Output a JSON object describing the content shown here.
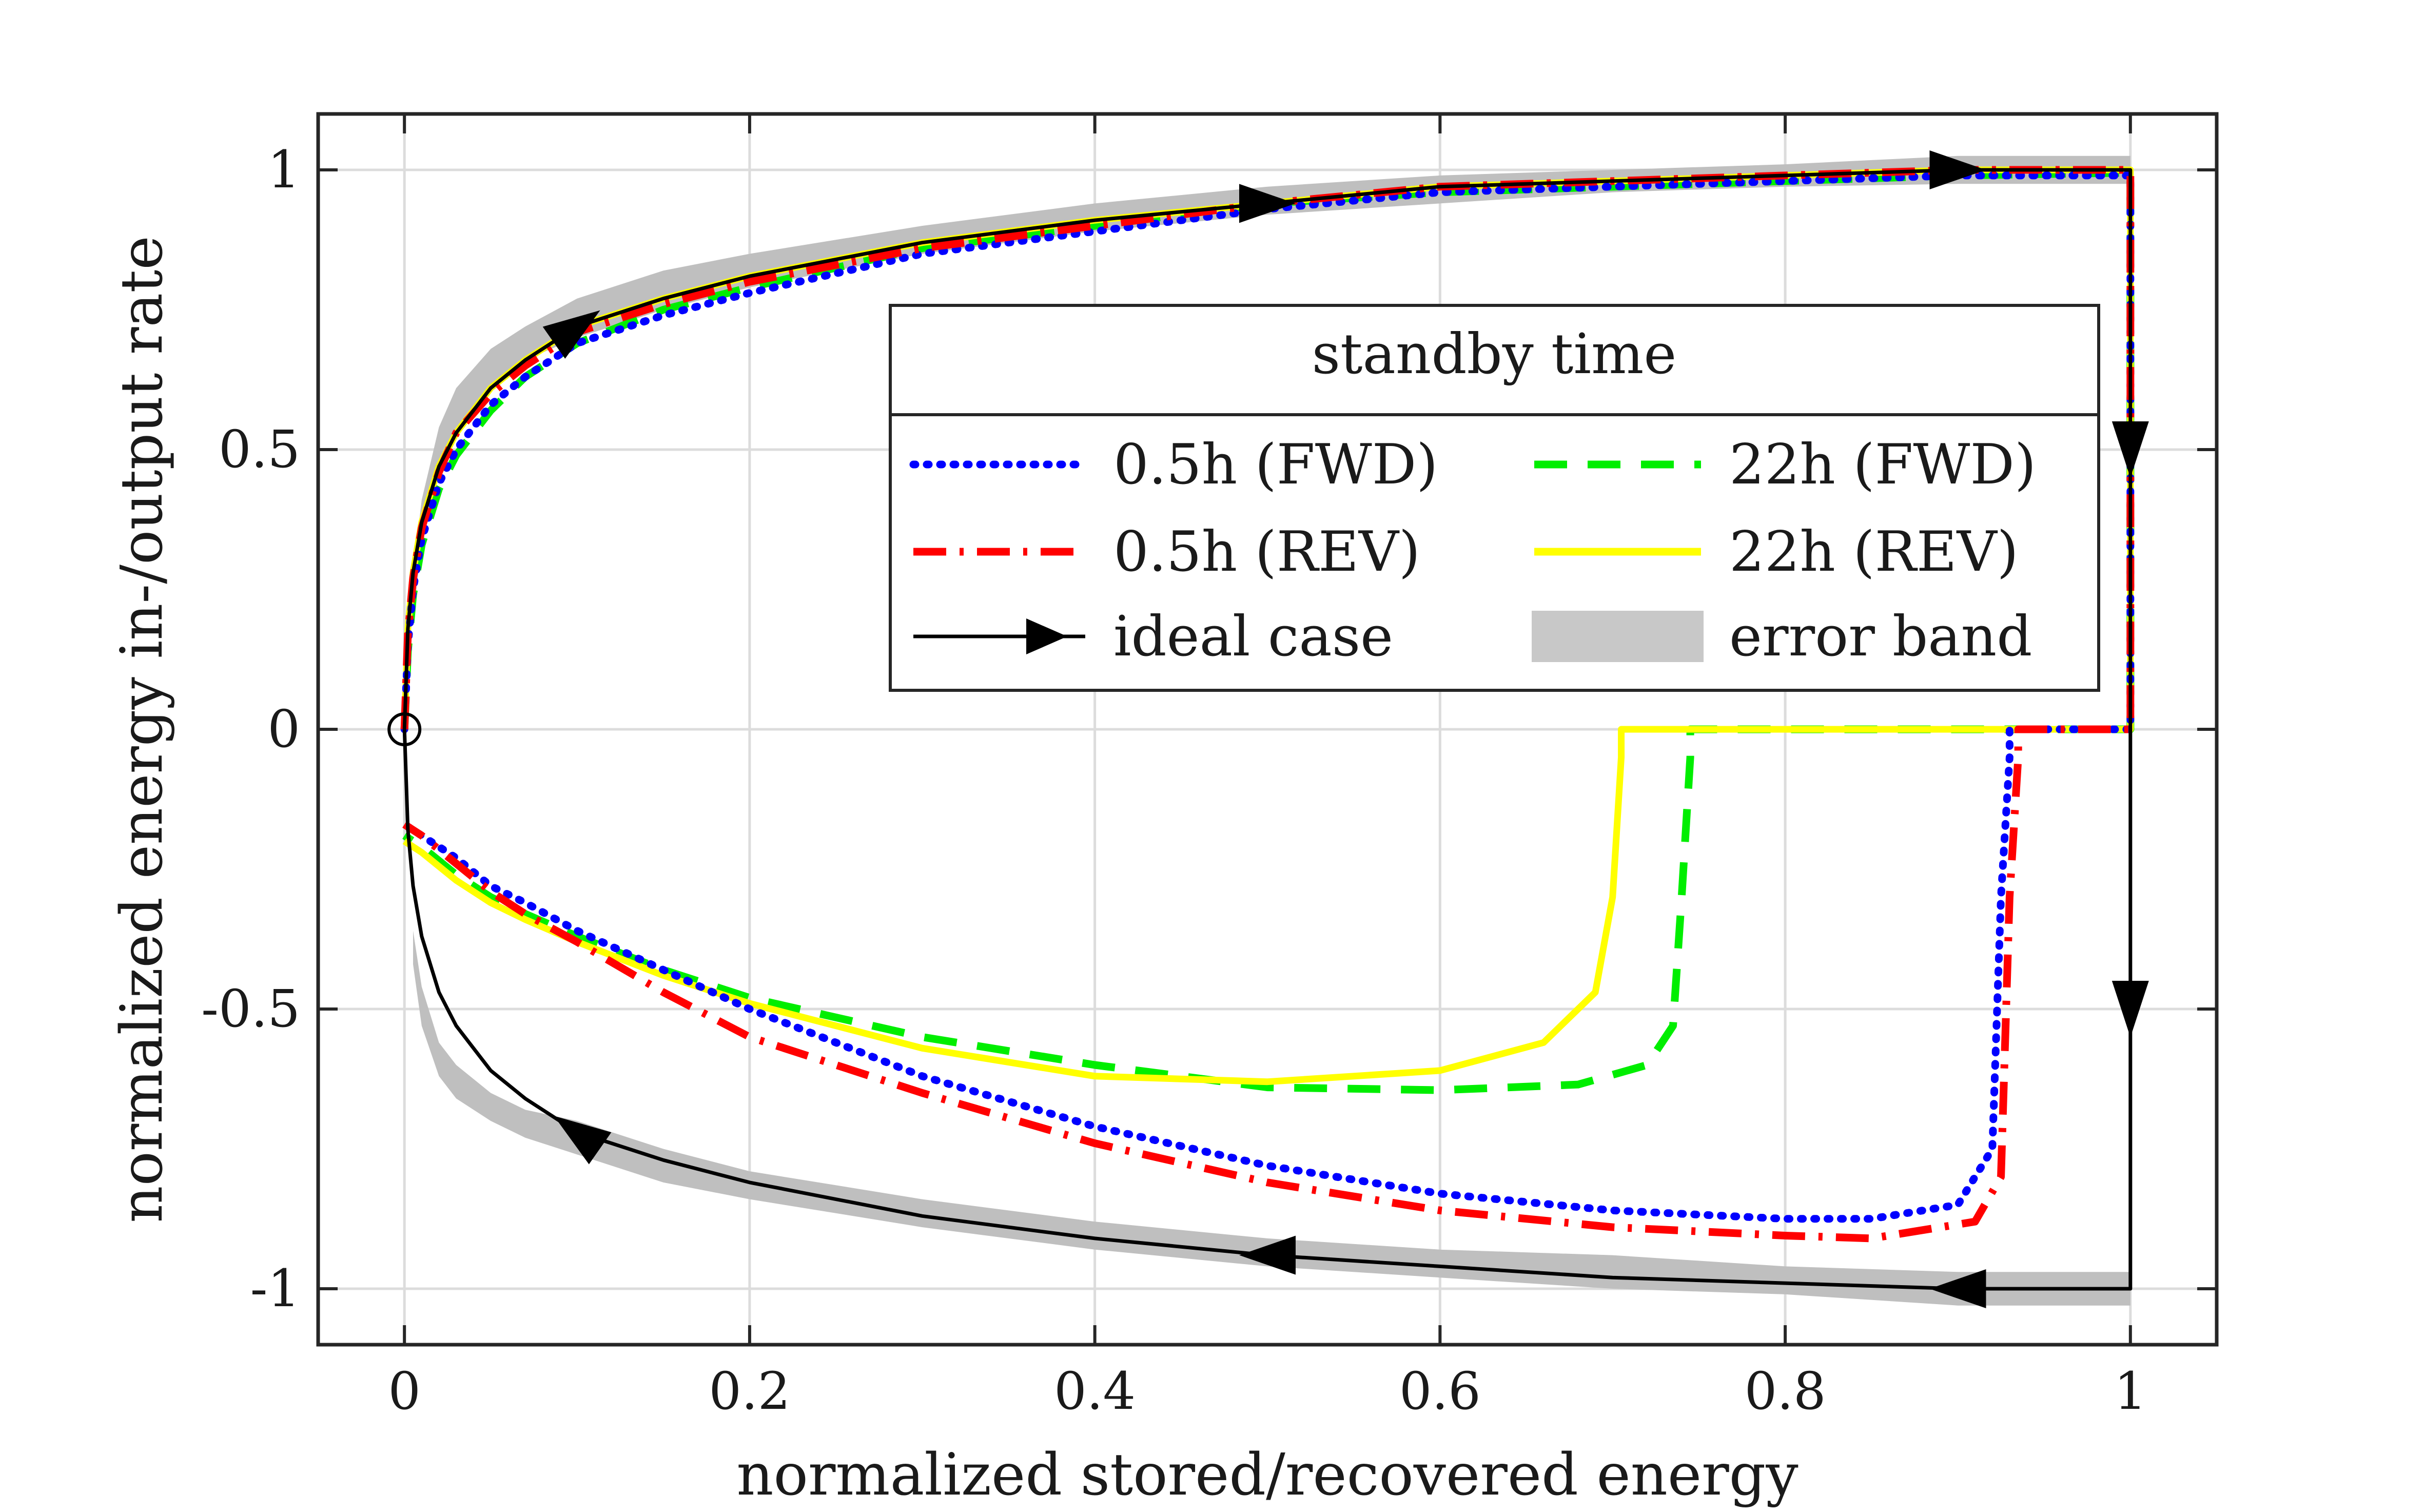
{
  "chart_data": {
    "type": "line",
    "title": "",
    "xlabel": "normalized stored/recovered energy",
    "ylabel": "normalized energy in-/output rate",
    "xlim": [
      -0.05,
      1.05
    ],
    "ylim": [
      -1.1,
      1.1
    ],
    "grid": true,
    "xticks": [
      0,
      0.2,
      0.4,
      0.6,
      0.8,
      1
    ],
    "xtick_labels": [
      "0",
      "0.2",
      "0.4",
      "0.6",
      "0.8",
      "1"
    ],
    "yticks": [
      1,
      0.5,
      0,
      -0.5,
      -1
    ],
    "ytick_labels": [
      "1",
      "0.5",
      "0",
      "-0.5",
      "-1"
    ],
    "legend": {
      "title": "standby time",
      "placement": "top-right inside",
      "entries": [
        {
          "key": "fwd05",
          "label": "0.5h (FWD)"
        },
        {
          "key": "fwd22",
          "label": "22h (FWD)"
        },
        {
          "key": "rev05",
          "label": "0.5h (REV)"
        },
        {
          "key": "rev22",
          "label": "22h (REV)"
        },
        {
          "key": "ideal",
          "label": "ideal case"
        },
        {
          "key": "band",
          "label": "error band"
        }
      ]
    },
    "series": [
      {
        "key": "band",
        "name": "error band",
        "color": "#bfbfbf",
        "style": "band",
        "upper": {
          "x": [
            0.005,
            0.01,
            0.02,
            0.03,
            0.05,
            0.07,
            0.1,
            0.15,
            0.2,
            0.3,
            0.4,
            0.5,
            0.6,
            0.7,
            0.8,
            0.9,
            1.0
          ],
          "lower": [
            0.2,
            0.33,
            0.47,
            0.54,
            0.61,
            0.66,
            0.7,
            0.75,
            0.79,
            0.85,
            0.89,
            0.92,
            0.94,
            0.96,
            0.97,
            0.975,
            0.975
          ],
          "upper": [
            0.28,
            0.41,
            0.54,
            0.61,
            0.68,
            0.72,
            0.77,
            0.82,
            0.85,
            0.9,
            0.94,
            0.97,
            0.99,
            1.0,
            1.01,
            1.025,
            1.025
          ]
        },
        "lower_branch": {
          "x": [
            0.005,
            0.01,
            0.02,
            0.03,
            0.05,
            0.07,
            0.1,
            0.15,
            0.2,
            0.3,
            0.4,
            0.5,
            0.6,
            0.7,
            0.8,
            0.9,
            1.0
          ],
          "lower": [
            -0.42,
            -0.53,
            -0.62,
            -0.66,
            -0.7,
            -0.73,
            -0.76,
            -0.81,
            -0.84,
            -0.89,
            -0.93,
            -0.96,
            -0.98,
            -1.0,
            -1.01,
            -1.03,
            -1.03
          ],
          "upper": [
            -0.36,
            -0.46,
            -0.56,
            -0.6,
            -0.65,
            -0.68,
            -0.7,
            -0.75,
            -0.79,
            -0.84,
            -0.88,
            -0.91,
            -0.93,
            -0.94,
            -0.96,
            -0.97,
            -0.97
          ]
        }
      },
      {
        "key": "fwd05",
        "name": "0.5h (FWD)",
        "color": "#0000ff",
        "style": "dotted",
        "x": [
          0,
          0.002,
          0.005,
          0.01,
          0.02,
          0.03,
          0.05,
          0.07,
          0.1,
          0.15,
          0.2,
          0.3,
          0.4,
          0.5,
          0.6,
          0.7,
          0.8,
          0.9,
          1.0,
          1.0,
          1.0,
          0.93,
          0.93,
          0.925,
          0.92,
          0.9,
          0.85,
          0.8,
          0.7,
          0.6,
          0.5,
          0.4,
          0.3,
          0.2,
          0.15,
          0.1,
          0.07,
          0.05,
          0.03,
          0.01,
          0.0
        ],
        "y": [
          0,
          0.15,
          0.25,
          0.34,
          0.44,
          0.5,
          0.58,
          0.63,
          0.69,
          0.74,
          0.78,
          0.85,
          0.89,
          0.93,
          0.96,
          0.97,
          0.98,
          0.99,
          0.99,
          0.5,
          0.0,
          0.0,
          -0.05,
          -0.3,
          -0.75,
          -0.85,
          -0.875,
          -0.875,
          -0.86,
          -0.83,
          -0.78,
          -0.71,
          -0.62,
          -0.5,
          -0.43,
          -0.36,
          -0.31,
          -0.28,
          -0.23,
          -0.19,
          -0.17
        ]
      },
      {
        "key": "rev05",
        "name": "0.5h (REV)",
        "color": "#ff0000",
        "style": "dashdot",
        "x": [
          0,
          0.002,
          0.005,
          0.01,
          0.02,
          0.03,
          0.05,
          0.07,
          0.1,
          0.15,
          0.2,
          0.3,
          0.4,
          0.5,
          0.6,
          0.7,
          0.8,
          0.9,
          1.0,
          1.0,
          1.0,
          0.935,
          0.935,
          0.93,
          0.925,
          0.91,
          0.85,
          0.8,
          0.7,
          0.6,
          0.5,
          0.4,
          0.3,
          0.2,
          0.15,
          0.1,
          0.07,
          0.05,
          0.03,
          0.01,
          0.0
        ],
        "y": [
          0,
          0.17,
          0.27,
          0.36,
          0.46,
          0.53,
          0.6,
          0.65,
          0.71,
          0.76,
          0.8,
          0.86,
          0.9,
          0.94,
          0.97,
          0.98,
          0.99,
          1.0,
          1.0,
          0.5,
          0.0,
          0.0,
          -0.05,
          -0.3,
          -0.8,
          -0.88,
          -0.91,
          -0.905,
          -0.89,
          -0.86,
          -0.81,
          -0.74,
          -0.65,
          -0.55,
          -0.47,
          -0.38,
          -0.33,
          -0.29,
          -0.24,
          -0.19,
          -0.17
        ]
      },
      {
        "key": "fwd22",
        "name": "22h (FWD)",
        "color": "#00ee00",
        "style": "dashed",
        "x": [
          0,
          0.002,
          0.005,
          0.01,
          0.02,
          0.03,
          0.05,
          0.07,
          0.1,
          0.15,
          0.2,
          0.3,
          0.4,
          0.5,
          0.6,
          0.7,
          0.8,
          0.9,
          1.0,
          1.0,
          1.0,
          0.745,
          0.745,
          0.74,
          0.735,
          0.72,
          0.68,
          0.6,
          0.5,
          0.4,
          0.3,
          0.2,
          0.15,
          0.1,
          0.07,
          0.05,
          0.03,
          0.01,
          0.0
        ],
        "y": [
          0,
          0.14,
          0.24,
          0.33,
          0.43,
          0.49,
          0.57,
          0.63,
          0.69,
          0.75,
          0.79,
          0.86,
          0.9,
          0.94,
          0.96,
          0.97,
          0.98,
          0.99,
          0.995,
          0.5,
          0.0,
          0.0,
          -0.05,
          -0.3,
          -0.53,
          -0.6,
          -0.635,
          -0.645,
          -0.64,
          -0.6,
          -0.55,
          -0.48,
          -0.43,
          -0.37,
          -0.33,
          -0.3,
          -0.26,
          -0.21,
          -0.19
        ]
      },
      {
        "key": "rev22",
        "name": "22h (REV)",
        "color": "#ffff00",
        "style": "solid",
        "x": [
          0,
          0.002,
          0.005,
          0.01,
          0.02,
          0.03,
          0.05,
          0.07,
          0.1,
          0.15,
          0.2,
          0.3,
          0.4,
          0.5,
          0.6,
          0.7,
          0.8,
          0.9,
          1.0,
          1.0,
          1.0,
          0.705,
          0.705,
          0.7,
          0.69,
          0.66,
          0.6,
          0.5,
          0.4,
          0.3,
          0.2,
          0.15,
          0.1,
          0.07,
          0.05,
          0.03,
          0.01,
          0.0
        ],
        "y": [
          0,
          0.18,
          0.28,
          0.37,
          0.47,
          0.53,
          0.61,
          0.66,
          0.72,
          0.77,
          0.81,
          0.87,
          0.91,
          0.94,
          0.97,
          0.98,
          0.99,
          1.0,
          1.0,
          0.5,
          0.0,
          0.0,
          -0.05,
          -0.3,
          -0.47,
          -0.56,
          -0.61,
          -0.63,
          -0.62,
          -0.57,
          -0.49,
          -0.44,
          -0.38,
          -0.34,
          -0.31,
          -0.27,
          -0.22,
          -0.2
        ]
      },
      {
        "key": "ideal",
        "name": "ideal case",
        "color": "#000000",
        "style": "solid-arrows",
        "x": [
          0,
          0.002,
          0.005,
          0.01,
          0.02,
          0.03,
          0.05,
          0.07,
          0.1,
          0.15,
          0.2,
          0.3,
          0.4,
          0.5,
          0.6,
          0.7,
          0.8,
          0.9,
          1.0,
          1.0,
          1.0,
          1.0,
          0.9,
          0.8,
          0.7,
          0.6,
          0.5,
          0.4,
          0.3,
          0.2,
          0.15,
          0.1,
          0.07,
          0.05,
          0.03,
          0.02,
          0.01,
          0.005,
          0.002,
          0
        ],
        "y": [
          0,
          0.18,
          0.28,
          0.37,
          0.47,
          0.53,
          0.61,
          0.66,
          0.72,
          0.77,
          0.81,
          0.87,
          0.91,
          0.94,
          0.97,
          0.98,
          0.99,
          1.0,
          1.0,
          0.0,
          -0.5,
          -1.0,
          -1.0,
          -0.99,
          -0.98,
          -0.96,
          -0.94,
          -0.91,
          -0.87,
          -0.81,
          -0.77,
          -0.72,
          -0.66,
          -0.61,
          -0.53,
          -0.47,
          -0.37,
          -0.28,
          -0.18,
          0
        ]
      }
    ],
    "annotations": {
      "origin_marker": {
        "x": 0,
        "y": 0,
        "shape": "circle"
      },
      "arrows": [
        {
          "x": 0.1,
          "y": 0.72,
          "dir": "forward"
        },
        {
          "x": 0.5,
          "y": 0.94,
          "dir": "forward"
        },
        {
          "x": 0.9,
          "y": 1.0,
          "dir": "forward"
        },
        {
          "x": 1.0,
          "y": 0.5,
          "dir": "down"
        },
        {
          "x": 1.0,
          "y": -0.5,
          "dir": "down"
        },
        {
          "x": 0.9,
          "y": -1.0,
          "dir": "back"
        },
        {
          "x": 0.5,
          "y": -0.94,
          "dir": "back"
        },
        {
          "x": 0.1,
          "y": -0.72,
          "dir": "back"
        }
      ]
    }
  }
}
